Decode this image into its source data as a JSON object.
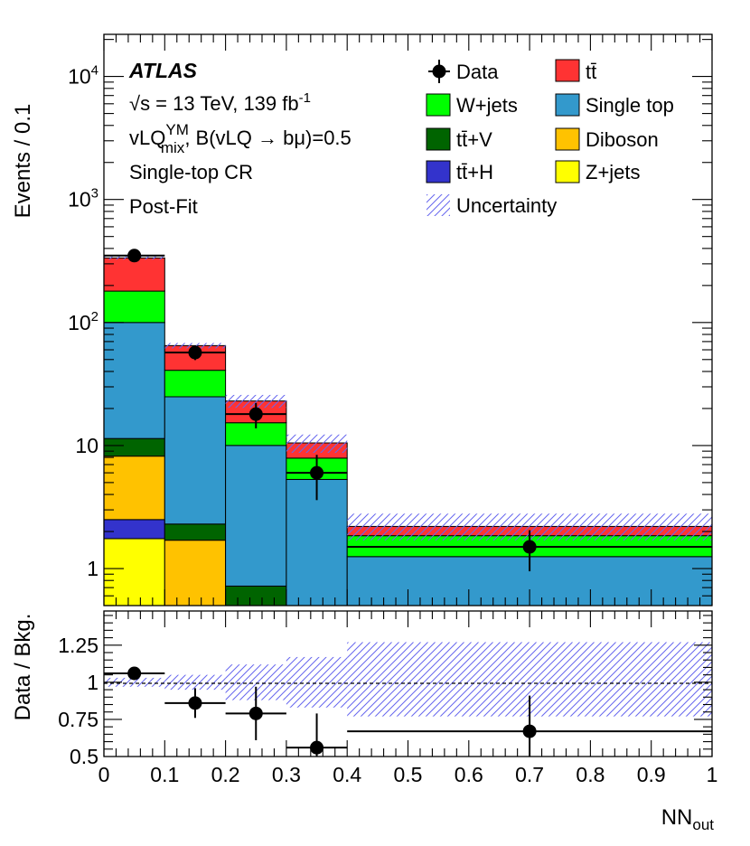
{
  "chart_data": {
    "type": "bar",
    "stacked": true,
    "log_y": true,
    "x_bins": [
      0,
      0.1,
      0.2,
      0.3,
      0.4,
      1.0
    ],
    "xlabel": "NN",
    "xlabel_sub": "out",
    "ylabel_top": "Events / 0.1",
    "ylabel_bottom": "Data / Bkg.",
    "xlim": [
      0,
      1
    ],
    "ylim_top": [
      0.5,
      22000
    ],
    "ylim_bottom": [
      0.5,
      1.48
    ],
    "x_ticks": [
      {
        "v": 0,
        "label": "0"
      },
      {
        "v": 0.1,
        "label": "0.1"
      },
      {
        "v": 0.2,
        "label": "0.2"
      },
      {
        "v": 0.3,
        "label": "0.3"
      },
      {
        "v": 0.4,
        "label": "0.4"
      },
      {
        "v": 0.5,
        "label": "0.5"
      },
      {
        "v": 0.6,
        "label": "0.6"
      },
      {
        "v": 0.7,
        "label": "0.7"
      },
      {
        "v": 0.8,
        "label": "0.8"
      },
      {
        "v": 0.9,
        "label": "0.9"
      },
      {
        "v": 1.0,
        "label": "1"
      }
    ],
    "y_ticks_top": [
      {
        "v": 1,
        "base": "1",
        "exp": ""
      },
      {
        "v": 10,
        "base": "10",
        "exp": ""
      },
      {
        "v": 100,
        "base": "10",
        "exp": "2"
      },
      {
        "v": 1000,
        "base": "10",
        "exp": "3"
      },
      {
        "v": 10000,
        "base": "10",
        "exp": "4"
      }
    ],
    "y_ticks_bottom": [
      {
        "v": 0.5,
        "label": "0.5"
      },
      {
        "v": 0.75,
        "label": "0.75"
      },
      {
        "v": 1.0,
        "label": "1"
      },
      {
        "v": 1.25,
        "label": "1.25"
      }
    ],
    "series": [
      {
        "name": "Z+jets",
        "color": "#ffff00",
        "values": [
          1.75,
          0,
          0,
          0,
          0
        ]
      },
      {
        "name": "tt̄+H",
        "color": "#3333cc",
        "values": [
          0.75,
          0,
          0,
          0,
          0
        ]
      },
      {
        "name": "Diboson",
        "color": "#ffc200",
        "values": [
          5.7,
          1.7,
          0,
          0,
          0
        ]
      },
      {
        "name": "tt̄+V",
        "color": "#006400",
        "values": [
          3.2,
          0.6,
          0.72,
          0,
          0
        ]
      },
      {
        "name": "Single top",
        "color": "#3399cc",
        "values": [
          88.6,
          22.6,
          9.3,
          5.3,
          1.25
        ]
      },
      {
        "name": "W+jets",
        "color": "#00ff00",
        "values": [
          80,
          16,
          5.3,
          2.6,
          0.6
        ]
      },
      {
        "name": "tt̄",
        "color": "#ff3333",
        "values": [
          155,
          24,
          7.7,
          2.6,
          0.35
        ]
      }
    ],
    "data": {
      "name": "Data",
      "x": [
        0.05,
        0.15,
        0.25,
        0.35,
        0.7
      ],
      "values": [
        350,
        57,
        18,
        6,
        1.5
      ],
      "err_low": [
        18,
        7.5,
        4.2,
        2.4,
        0.55
      ],
      "err_high": [
        18,
        7.5,
        4.2,
        2.4,
        0.55
      ]
    },
    "uncertainty": {
      "name": "Uncertainty",
      "ratio_low": [
        0.97,
        0.95,
        0.88,
        0.83,
        0.77
      ],
      "ratio_high": [
        1.03,
        1.05,
        1.12,
        1.17,
        1.27
      ]
    },
    "ratio": {
      "values": [
        1.06,
        0.86,
        0.79,
        0.56,
        0.67
      ],
      "err_low": [
        0.04,
        0.1,
        0.18,
        0.23,
        0.24
      ],
      "err_high": [
        0.04,
        0.1,
        0.18,
        0.23,
        0.24
      ]
    },
    "legend": {
      "left": [
        "Data",
        "W+jets",
        "tt̄+V",
        "tt̄+H",
        "Uncertainty"
      ],
      "right": [
        "tt̄",
        "Single top",
        "Diboson",
        "Z+jets"
      ]
    },
    "annotations": {
      "experiment": "ATLAS",
      "energy": "√s = 13 TeV, 139 fb",
      "energy_exp": "-1",
      "model_pre": "vLQ",
      "model_sup": "YM",
      "model_sub": "mix",
      "model_post": ", B(vLQ → bμ)=0.5",
      "region": "Single-top CR",
      "fit": "Post-Fit"
    }
  }
}
